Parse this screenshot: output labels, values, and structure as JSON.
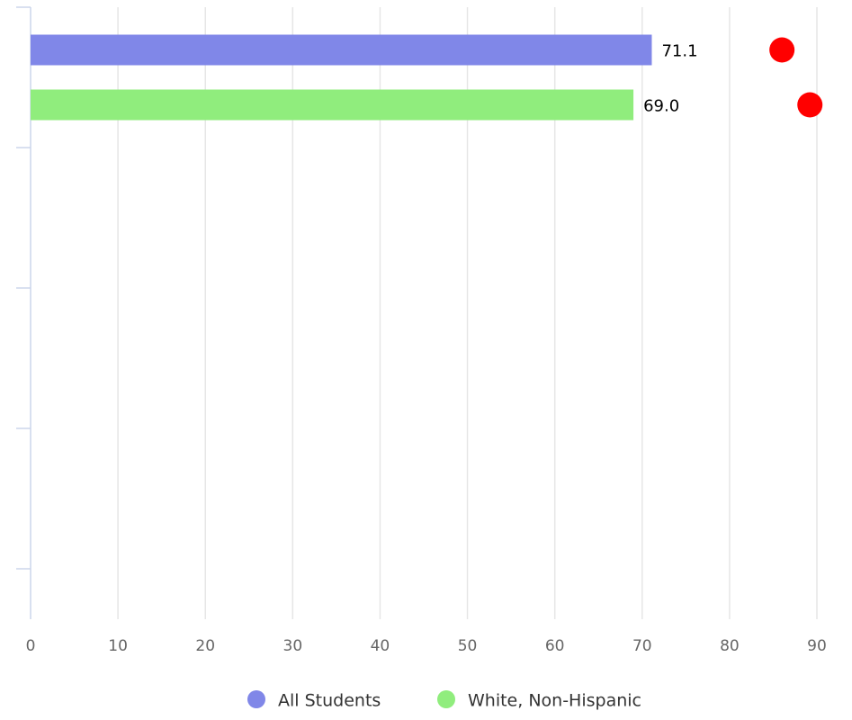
{
  "chart_data": {
    "type": "bar",
    "orientation": "horizontal",
    "categories": [
      null,
      null,
      null,
      null
    ],
    "series": [
      {
        "name": "All Students",
        "color": "#8087e8",
        "values": [
          71.1,
          null,
          null,
          null
        ],
        "target": 86
      },
      {
        "name": "White, Non-Hispanic",
        "color": "#90ed7d",
        "values": [
          69.0,
          null,
          null,
          null
        ],
        "value_labels": [
          "69.0",
          null,
          null,
          null
        ],
        "target": 89.2
      }
    ],
    "target_color": "#ff0000",
    "xlim": [
      0,
      90
    ],
    "xticks": [
      0,
      10,
      20,
      30,
      40,
      50,
      60,
      70,
      80,
      90
    ],
    "grid": true,
    "legend": "bottom"
  }
}
